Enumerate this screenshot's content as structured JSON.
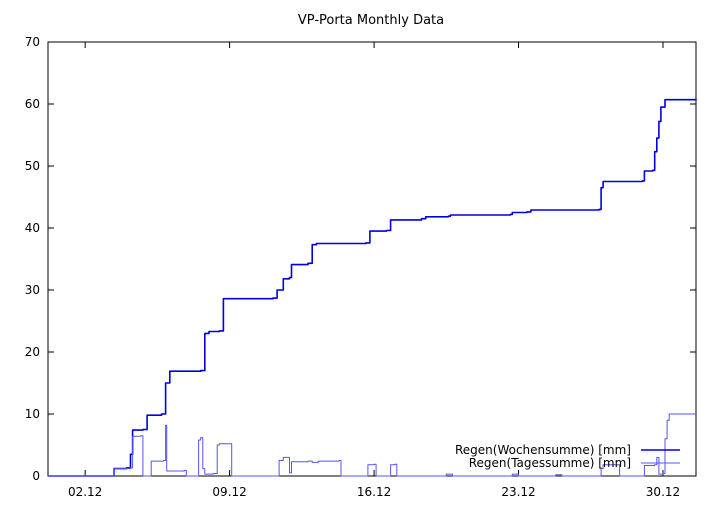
{
  "chart_data": {
    "type": "line",
    "title": "VP-Porta Monthly Data",
    "xlabel": "",
    "ylabel": "",
    "xlim": [
      0.2,
      31.6
    ],
    "ylim": [
      0,
      70
    ],
    "yticks": [
      0,
      10,
      20,
      30,
      40,
      50,
      60,
      70
    ],
    "xticks": [
      {
        "x": 2,
        "label": "02.12"
      },
      {
        "x": 9,
        "label": "09.12"
      },
      {
        "x": 16,
        "label": "16.12"
      },
      {
        "x": 23,
        "label": "23.12"
      },
      {
        "x": 30,
        "label": "30.12"
      }
    ],
    "grid": false,
    "legend_position": "bottom-right",
    "series": [
      {
        "name": "Regen(Wochensumme) [mm]",
        "color": "#0000dd",
        "step": true,
        "points": [
          [
            0.2,
            0
          ],
          [
            3.3,
            0
          ],
          [
            3.4,
            1.2
          ],
          [
            4.0,
            1.3
          ],
          [
            4.2,
            3.5
          ],
          [
            4.3,
            7.4
          ],
          [
            4.8,
            7.5
          ],
          [
            5.0,
            9.8
          ],
          [
            5.7,
            10.0
          ],
          [
            5.9,
            15.0
          ],
          [
            6.1,
            16.9
          ],
          [
            7.6,
            17.0
          ],
          [
            7.8,
            23.0
          ],
          [
            8.0,
            23.3
          ],
          [
            8.5,
            23.4
          ],
          [
            8.7,
            28.6
          ],
          [
            11.1,
            28.7
          ],
          [
            11.3,
            30.0
          ],
          [
            11.6,
            31.8
          ],
          [
            11.9,
            32.0
          ],
          [
            12.0,
            34.1
          ],
          [
            12.8,
            34.3
          ],
          [
            13.0,
            37.3
          ],
          [
            13.2,
            37.5
          ],
          [
            15.6,
            37.6
          ],
          [
            15.8,
            39.5
          ],
          [
            16.6,
            39.6
          ],
          [
            16.8,
            41.3
          ],
          [
            18.3,
            41.5
          ],
          [
            18.5,
            41.8
          ],
          [
            19.6,
            41.9
          ],
          [
            19.7,
            42.1
          ],
          [
            22.6,
            42.2
          ],
          [
            22.7,
            42.5
          ],
          [
            23.4,
            42.6
          ],
          [
            23.6,
            42.9
          ],
          [
            26.9,
            43.0
          ],
          [
            27.0,
            46.5
          ],
          [
            27.1,
            47.5
          ],
          [
            29.0,
            47.6
          ],
          [
            29.1,
            49.2
          ],
          [
            29.5,
            49.3
          ],
          [
            29.6,
            52.3
          ],
          [
            29.7,
            54.5
          ],
          [
            29.8,
            57.2
          ],
          [
            29.9,
            59.5
          ],
          [
            30.1,
            60.7
          ],
          [
            31.6,
            60.8
          ]
        ]
      },
      {
        "name": "Regen(Tagessumme) [mm]",
        "color": "#5555ee",
        "step": true,
        "points": [
          [
            0.2,
            0
          ],
          [
            3.3,
            0
          ],
          [
            3.4,
            1.2
          ],
          [
            4.2,
            1.3
          ],
          [
            4.3,
            6.4
          ],
          [
            4.7,
            6.5
          ],
          [
            4.8,
            0
          ],
          [
            5.1,
            0
          ],
          [
            5.2,
            2.4
          ],
          [
            5.8,
            2.5
          ],
          [
            5.9,
            8.2
          ],
          [
            5.95,
            0.8
          ],
          [
            6.8,
            0.9
          ],
          [
            6.9,
            0
          ],
          [
            7.4,
            0
          ],
          [
            7.5,
            5.8
          ],
          [
            7.6,
            6.2
          ],
          [
            7.7,
            1.2
          ],
          [
            7.8,
            0.3
          ],
          [
            8.2,
            0.4
          ],
          [
            8.4,
            5.0
          ],
          [
            8.5,
            5.2
          ],
          [
            9.0,
            5.2
          ],
          [
            9.1,
            0
          ],
          [
            11.3,
            0
          ],
          [
            11.4,
            2.5
          ],
          [
            11.6,
            3.0
          ],
          [
            11.8,
            3.0
          ],
          [
            11.9,
            0.5
          ],
          [
            12.0,
            2.3
          ],
          [
            12.8,
            2.4
          ],
          [
            13.0,
            2.2
          ],
          [
            13.3,
            2.4
          ],
          [
            14.3,
            2.5
          ],
          [
            14.4,
            0
          ],
          [
            15.6,
            0
          ],
          [
            15.7,
            1.8
          ],
          [
            16.0,
            1.9
          ],
          [
            16.1,
            0
          ],
          [
            16.7,
            0
          ],
          [
            16.8,
            1.8
          ],
          [
            17.0,
            1.9
          ],
          [
            17.1,
            0
          ],
          [
            19.4,
            0
          ],
          [
            19.5,
            0.3
          ],
          [
            19.7,
            0.3
          ],
          [
            19.8,
            0
          ],
          [
            22.6,
            0
          ],
          [
            22.7,
            0.3
          ],
          [
            22.9,
            0.3
          ],
          [
            23.0,
            0
          ],
          [
            24.7,
            0
          ],
          [
            24.8,
            0.2
          ],
          [
            25.0,
            0.2
          ],
          [
            25.1,
            0
          ],
          [
            26.9,
            0
          ],
          [
            27.0,
            1.2
          ],
          [
            27.1,
            1.8
          ],
          [
            27.8,
            1.8
          ],
          [
            27.9,
            0
          ],
          [
            29.0,
            0
          ],
          [
            29.1,
            1.7
          ],
          [
            29.6,
            1.8
          ],
          [
            29.7,
            3.0
          ],
          [
            29.8,
            0.3
          ],
          [
            30.0,
            0.4
          ],
          [
            30.1,
            6.0
          ],
          [
            30.2,
            9.0
          ],
          [
            30.3,
            10.0
          ],
          [
            31.6,
            10.0
          ]
        ]
      }
    ]
  }
}
